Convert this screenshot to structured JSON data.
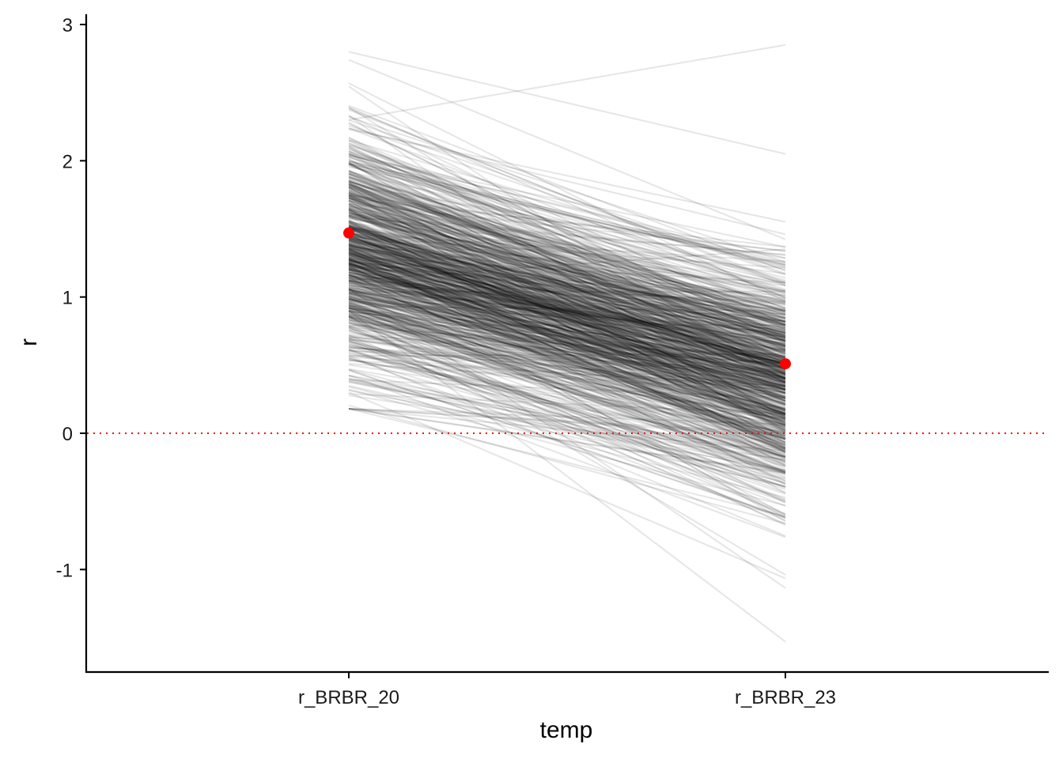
{
  "chart_data": {
    "type": "line",
    "title": "",
    "xlabel": "temp",
    "ylabel": "r",
    "categories": [
      "r_BRBR_20",
      "r_BRBR_23"
    ],
    "ylim": [
      -1.75,
      3.07
    ],
    "y_ticks": [
      "3",
      "2",
      "1",
      "0",
      "-1"
    ],
    "y_tick_values": [
      3,
      2,
      1,
      0,
      -1
    ],
    "grid": false,
    "legend": "none",
    "reference_line": {
      "y": 0,
      "style": "dotted",
      "color": "#ff0000"
    },
    "mean_points": {
      "color": "#ff0000",
      "values": [
        1.47,
        0.51
      ]
    },
    "line_color": "#000000",
    "line_opacity": 0.1,
    "samples": {
      "description": "posterior draws, each a line from r_BRBR_20 to r_BRBR_23",
      "count": 800,
      "r_BRBR_20_range": [
        0.18,
        2.8
      ],
      "r_BRBR_23_range": [
        -1.53,
        2.85
      ]
    }
  }
}
